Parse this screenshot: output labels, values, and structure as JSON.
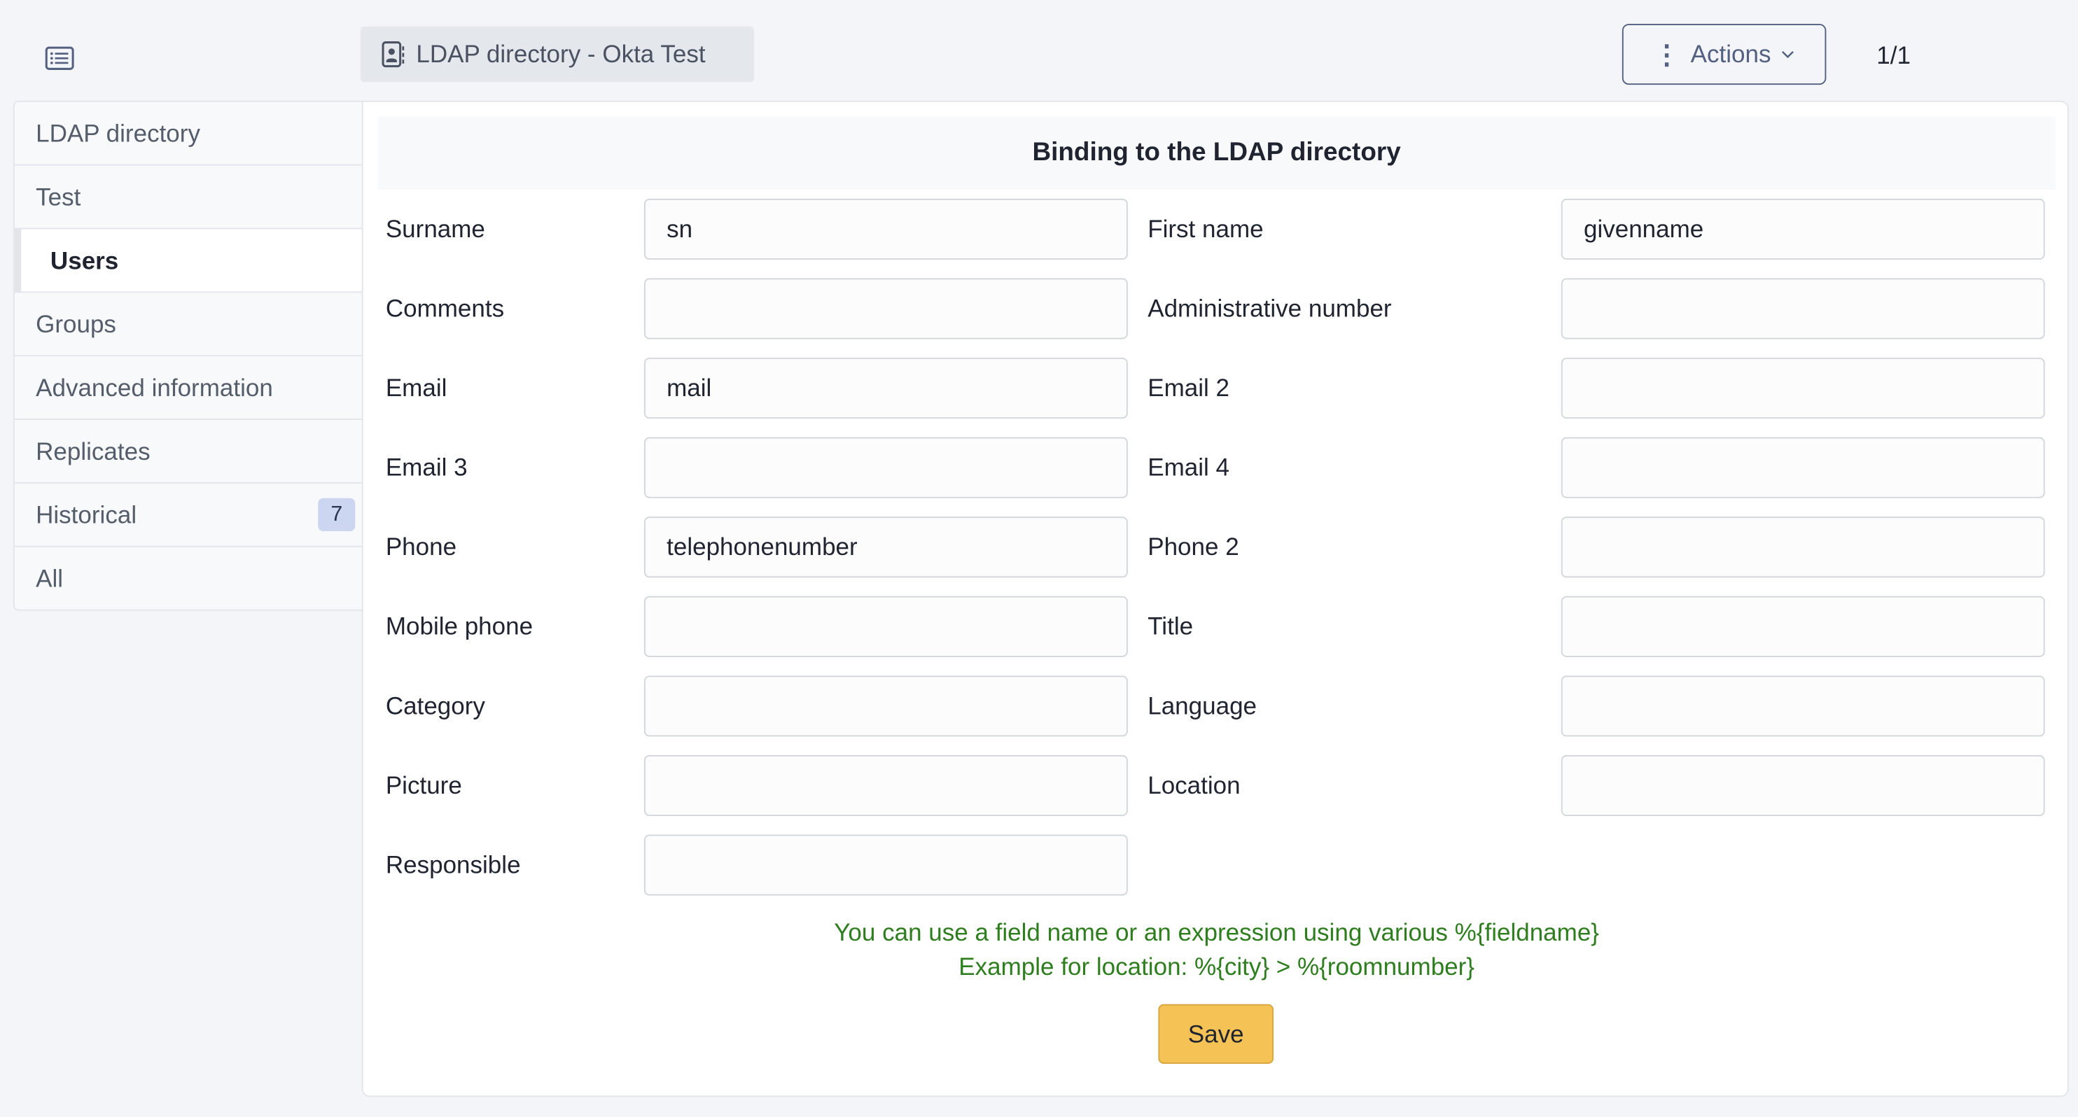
{
  "header": {
    "title": "LDAP directory - Okta Test",
    "actions_label": "Actions",
    "pager": "1/1"
  },
  "sidebar": {
    "items": [
      {
        "label": "LDAP directory"
      },
      {
        "label": "Test"
      },
      {
        "label": "Users",
        "active": true
      },
      {
        "label": "Groups"
      },
      {
        "label": "Advanced information"
      },
      {
        "label": "Replicates"
      },
      {
        "label": "Historical",
        "badge": "7"
      },
      {
        "label": "All"
      }
    ]
  },
  "form": {
    "title": "Binding to the LDAP directory",
    "fields": [
      {
        "label": "Surname",
        "value": "sn"
      },
      {
        "label": "First name",
        "value": "givenname"
      },
      {
        "label": "Comments",
        "value": ""
      },
      {
        "label": "Administrative number",
        "value": ""
      },
      {
        "label": "Email",
        "value": "mail"
      },
      {
        "label": "Email 2",
        "value": ""
      },
      {
        "label": "Email 3",
        "value": ""
      },
      {
        "label": "Email 4",
        "value": ""
      },
      {
        "label": "Phone",
        "value": "telephonenumber"
      },
      {
        "label": "Phone 2",
        "value": ""
      },
      {
        "label": "Mobile phone",
        "value": ""
      },
      {
        "label": "Title",
        "value": ""
      },
      {
        "label": "Category",
        "value": ""
      },
      {
        "label": "Language",
        "value": ""
      },
      {
        "label": "Picture",
        "value": ""
      },
      {
        "label": "Location",
        "value": ""
      },
      {
        "label": "Responsible",
        "value": ""
      }
    ],
    "help_line1": "You can use a field name or an expression using various %{fieldname}",
    "help_line2": "Example for location: %{city} > %{roomnumber}",
    "save_label": "Save"
  },
  "colors": {
    "accent": "#536080",
    "save": "#f5c255",
    "help_text": "#2e7d1e",
    "badge": "#cdd6f0"
  }
}
